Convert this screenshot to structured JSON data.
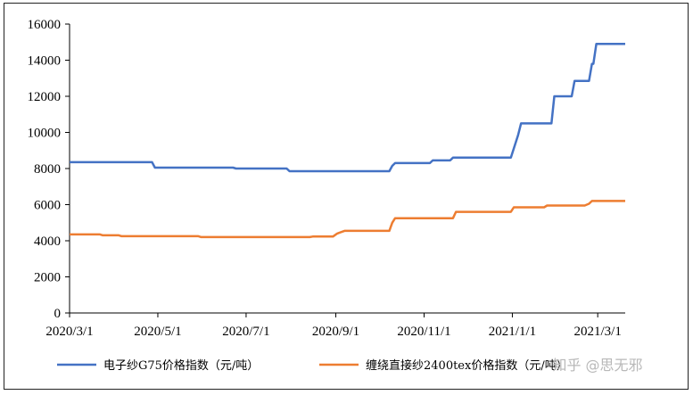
{
  "chart_data": {
    "type": "line",
    "title": "",
    "xlabel": "",
    "ylabel": "",
    "ylim": [
      0,
      16000
    ],
    "yticks": [
      0,
      2000,
      4000,
      6000,
      8000,
      10000,
      12000,
      14000,
      16000
    ],
    "xlim": [
      "2020-03-01",
      "2021-03-20"
    ],
    "xticks": [
      {
        "date": "2020-03-01",
        "label": "2020/3/1"
      },
      {
        "date": "2020-05-01",
        "label": "2020/5/1"
      },
      {
        "date": "2020-07-01",
        "label": "2020/7/1"
      },
      {
        "date": "2020-09-01",
        "label": "2020/9/1"
      },
      {
        "date": "2020-11-01",
        "label": "2020/11/1"
      },
      {
        "date": "2021-01-01",
        "label": "2021/1/1"
      },
      {
        "date": "2021-03-01",
        "label": "2021/3/1"
      }
    ],
    "grid": false,
    "legend_position": "bottom",
    "series": [
      {
        "name": "电子纱G75价格指数（元/吨）",
        "color": "#4472C4",
        "points": [
          [
            "2020-03-01",
            8350
          ],
          [
            "2020-04-27",
            8350
          ],
          [
            "2020-04-29",
            8050
          ],
          [
            "2020-06-22",
            8050
          ],
          [
            "2020-06-24",
            8000
          ],
          [
            "2020-07-29",
            8000
          ],
          [
            "2020-07-31",
            7850
          ],
          [
            "2020-10-08",
            7850
          ],
          [
            "2020-10-10",
            8150
          ],
          [
            "2020-10-12",
            8300
          ],
          [
            "2020-11-05",
            8300
          ],
          [
            "2020-11-07",
            8450
          ],
          [
            "2020-11-19",
            8450
          ],
          [
            "2020-11-21",
            8600
          ],
          [
            "2020-12-31",
            8600
          ],
          [
            "2021-01-05",
            9850
          ],
          [
            "2021-01-07",
            10500
          ],
          [
            "2021-01-28",
            10500
          ],
          [
            "2021-01-30",
            12000
          ],
          [
            "2021-02-11",
            12000
          ],
          [
            "2021-02-13",
            12850
          ],
          [
            "2021-02-23",
            12850
          ],
          [
            "2021-02-25",
            13800
          ],
          [
            "2021-02-26",
            13800
          ],
          [
            "2021-02-28",
            14900
          ],
          [
            "2021-03-20",
            14900
          ]
        ]
      },
      {
        "name": "缠绕直接纱2400tex价格指数（元/吨）",
        "color": "#ED7D31",
        "points": [
          [
            "2020-03-01",
            4350
          ],
          [
            "2020-03-22",
            4350
          ],
          [
            "2020-03-24",
            4300
          ],
          [
            "2020-04-04",
            4300
          ],
          [
            "2020-04-06",
            4250
          ],
          [
            "2020-05-29",
            4250
          ],
          [
            "2020-05-31",
            4200
          ],
          [
            "2020-07-01",
            4200
          ],
          [
            "2020-07-03",
            4200
          ],
          [
            "2020-08-14",
            4200
          ],
          [
            "2020-08-16",
            4230
          ],
          [
            "2020-08-30",
            4230
          ],
          [
            "2020-09-02",
            4400
          ],
          [
            "2020-09-07",
            4550
          ],
          [
            "2020-10-08",
            4550
          ],
          [
            "2020-10-10",
            5000
          ],
          [
            "2020-10-12",
            5250
          ],
          [
            "2020-11-21",
            5250
          ],
          [
            "2020-11-23",
            5600
          ],
          [
            "2020-12-31",
            5600
          ],
          [
            "2021-01-02",
            5850
          ],
          [
            "2021-01-23",
            5850
          ],
          [
            "2021-01-25",
            5950
          ],
          [
            "2021-02-20",
            5950
          ],
          [
            "2021-02-23",
            6050
          ],
          [
            "2021-02-25",
            6200
          ],
          [
            "2021-03-20",
            6200
          ]
        ]
      }
    ]
  },
  "watermark": "知乎 @思无邪"
}
